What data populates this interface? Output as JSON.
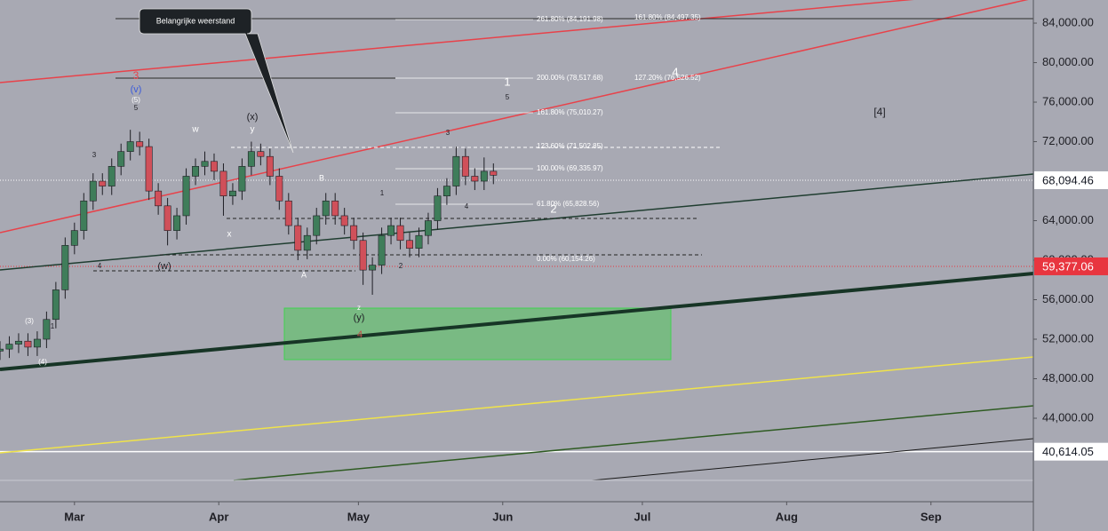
{
  "chart_data": {
    "type": "candlestick",
    "x": [
      45,
      47,
      49,
      51,
      53,
      55,
      57,
      59,
      61,
      63,
      65,
      67,
      69,
      71,
      73,
      75,
      77,
      79,
      81,
      83,
      85,
      87,
      89,
      91,
      93,
      95,
      97,
      99,
      101,
      103,
      105,
      107,
      109,
      111,
      113,
      115,
      117,
      119,
      121,
      123,
      125,
      127,
      129,
      131,
      133,
      135,
      137,
      139,
      141,
      143,
      145,
      147,
      149,
      151
    ],
    "open": [
      50800,
      51000,
      51500,
      51800,
      51200,
      52000,
      54000,
      57000,
      61500,
      63000,
      66000,
      68000,
      67500,
      69500,
      71000,
      72000,
      71500,
      67000,
      65500,
      63000,
      64500,
      68500,
      69500,
      70000,
      69000,
      66500,
      67000,
      69500,
      71000,
      70500,
      68500,
      66000,
      63500,
      61000,
      62500,
      64500,
      66000,
      64500,
      63500,
      62000,
      59000,
      59500,
      62500,
      63500,
      62000,
      61200,
      62500,
      64000,
      66500,
      67500,
      70500,
      68500,
      68000,
      69000
    ],
    "high": [
      51800,
      52300,
      52600,
      52600,
      52800,
      54800,
      57800,
      62300,
      63800,
      66800,
      68800,
      68800,
      70300,
      71800,
      73200,
      73000,
      72300,
      67800,
      66300,
      65300,
      69300,
      70300,
      71000,
      70800,
      69800,
      67800,
      70300,
      72000,
      71800,
      71300,
      69300,
      66800,
      64300,
      63300,
      65300,
      66800,
      66800,
      65300,
      64300,
      62800,
      60300,
      63300,
      64300,
      64300,
      62800,
      63300,
      64800,
      67300,
      68300,
      71500,
      71300,
      69300,
      70400,
      69800
    ],
    "low": [
      49900,
      50100,
      50600,
      50300,
      50300,
      51100,
      53100,
      56100,
      60600,
      62100,
      65100,
      66600,
      66600,
      68600,
      70100,
      70600,
      66100,
      64600,
      61500,
      62100,
      63600,
      67600,
      68600,
      68100,
      64500,
      65600,
      66100,
      68600,
      69600,
      67600,
      65100,
      62600,
      60000,
      60100,
      61600,
      63600,
      63600,
      62600,
      61100,
      57500,
      56500,
      58600,
      61600,
      61100,
      60300,
      60300,
      61600,
      63100,
      65600,
      66600,
      67600,
      67100,
      67100,
      67700
    ],
    "close": [
      51000,
      51500,
      51800,
      51200,
      52000,
      54000,
      57000,
      61500,
      63000,
      66000,
      68000,
      67500,
      69500,
      71000,
      72000,
      71500,
      67000,
      65500,
      63000,
      64500,
      68500,
      69500,
      70000,
      69000,
      66500,
      67000,
      69500,
      71000,
      70500,
      68500,
      66000,
      63500,
      61000,
      62500,
      64500,
      66000,
      64500,
      63500,
      62000,
      59000,
      59500,
      62500,
      63500,
      62000,
      61200,
      62500,
      64000,
      66500,
      67500,
      70500,
      68500,
      68000,
      69000,
      68600
    ],
    "up_color": "#3f7d5a",
    "down_color": "#d0505a",
    "xlim": [
      45,
      267
    ],
    "ylim": [
      35550,
      86340
    ],
    "xticks": [
      {
        "value": 61,
        "label": "Mar"
      },
      {
        "value": 92,
        "label": "Apr"
      },
      {
        "value": 122,
        "label": "May"
      },
      {
        "value": 153,
        "label": "Jun"
      },
      {
        "value": 183,
        "label": "Jul"
      },
      {
        "value": 214,
        "label": "Aug"
      },
      {
        "value": 245,
        "label": "Sep"
      }
    ],
    "yticks": [
      {
        "value": 44000,
        "label": "44,000.00"
      },
      {
        "value": 48000,
        "label": "48,000.00"
      },
      {
        "value": 52000,
        "label": "52,000.00"
      },
      {
        "value": 56000,
        "label": "56,000.00"
      },
      {
        "value": 60000,
        "label": "60,000.00"
      },
      {
        "value": 64000,
        "label": "64,000.00"
      },
      {
        "value": 72000,
        "label": "72,000.00"
      },
      {
        "value": 76000,
        "label": "76,000.00"
      },
      {
        "value": 80000,
        "label": "80,000.00"
      },
      {
        "value": 84000,
        "label": "84,000.00"
      }
    ],
    "price_labels": [
      {
        "value": 68094.46,
        "label": "68,094.46",
        "color": "#ffffff"
      },
      {
        "value": 59377.06,
        "label": "59,377.06",
        "color": "#e8353f"
      },
      {
        "value": 40614.05,
        "label": "40,614.05",
        "color": "#ffffff"
      }
    ],
    "fib_labels": [
      "261.80% (84,191.98)",
      "161.80% (84,497.35)",
      "200.00% (78,517.68)",
      "127.20% (76,526.52)",
      "161.80% (75,010.27)",
      "123.60% (71,502.85)",
      "100.00% (69,335.97)",
      "61.80% (65,828.56)",
      "0.00% (60,154.26)"
    ],
    "callout": "Belangrijke weerstand",
    "annotations": [
      "3",
      "(v)",
      "(5)",
      "5",
      "3",
      "w",
      "(x)",
      "y",
      "x",
      "(w)",
      "4",
      "(4)",
      "(3)",
      "1",
      "B",
      "A",
      "1",
      "2",
      "3",
      "4",
      "1",
      "5",
      "2",
      "4",
      "[4]",
      "(y)",
      "z",
      "4"
    ]
  }
}
